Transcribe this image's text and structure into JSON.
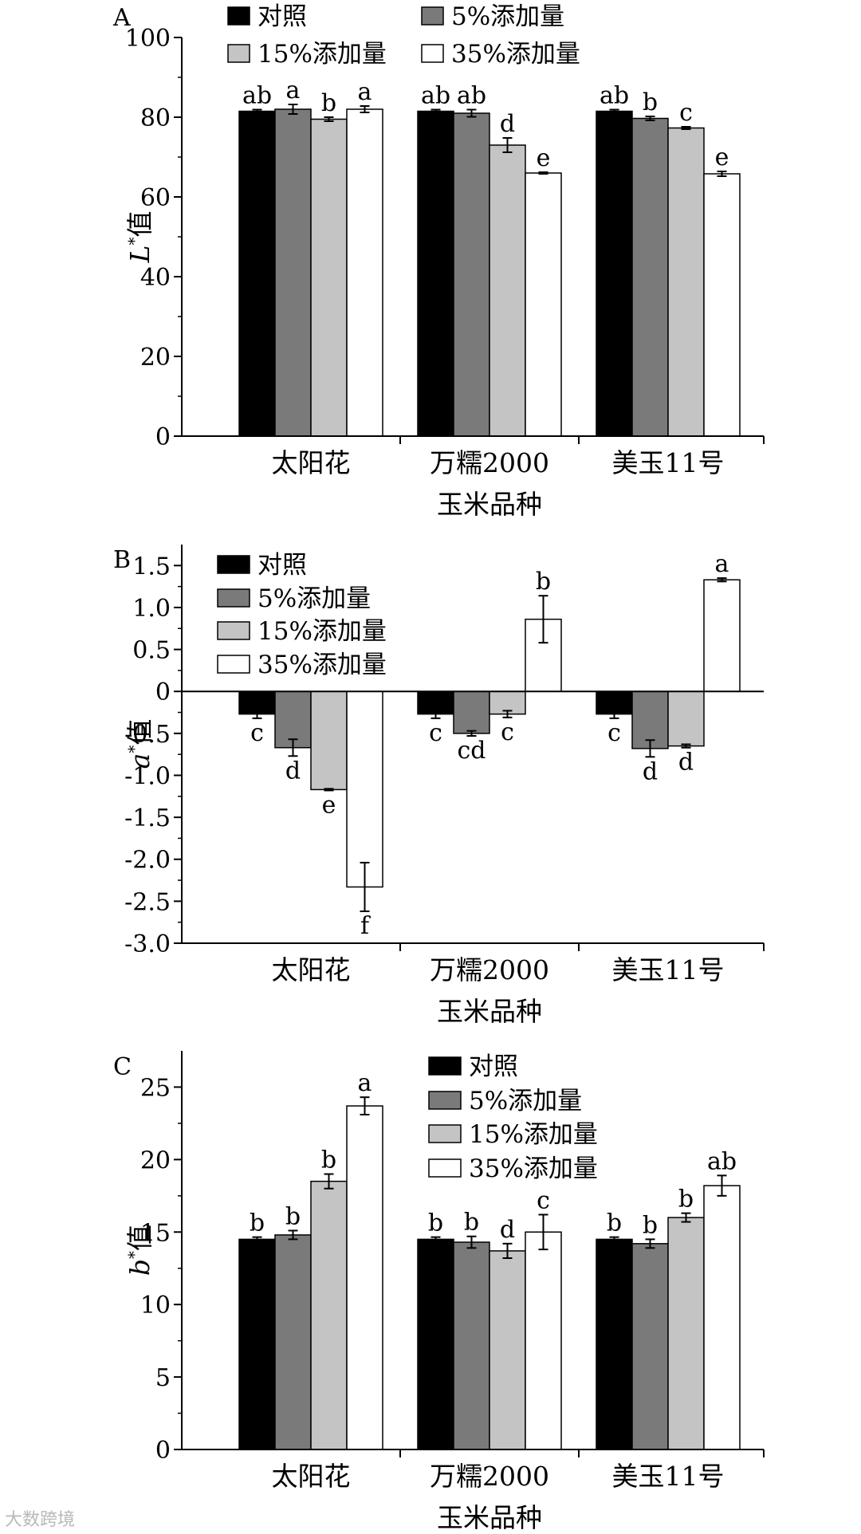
{
  "watermark": "大数跨境",
  "colors": {
    "对照": "#000000",
    "5%添加量": "#7a7a7a",
    "15%添加量": "#c4c4c4",
    "35%添加量": "#ffffff"
  },
  "chart_data": [
    {
      "type": "bar",
      "panel_label": "A",
      "xlabel": "玉米品种",
      "ylabel_main": "L",
      "ylabel_suffix": "值",
      "categories": [
        "太阳花",
        "万糯2000",
        "美玉11号"
      ],
      "ylim": [
        0,
        100
      ],
      "yticks": [
        "0",
        "20",
        "40",
        "60",
        "80",
        "100"
      ],
      "legend_position": "top",
      "series": [
        {
          "name": "对照",
          "values": [
            81.5,
            81.5,
            81.5
          ],
          "errors": [
            0.4,
            0.4,
            0.4
          ],
          "letters": [
            "ab",
            "ab",
            "ab"
          ]
        },
        {
          "name": "5%添加量",
          "values": [
            82.0,
            81.0,
            79.7
          ],
          "errors": [
            1.2,
            0.9,
            0.5
          ],
          "letters": [
            "a",
            "ab",
            "b"
          ]
        },
        {
          "name": "15%添加量",
          "values": [
            79.5,
            73.0,
            77.3
          ],
          "errors": [
            0.5,
            1.8,
            0.3
          ],
          "letters": [
            "b",
            "d",
            "c"
          ]
        },
        {
          "name": "35%添加量",
          "values": [
            82.0,
            66.0,
            65.8
          ],
          "errors": [
            0.8,
            0.2,
            0.6
          ],
          "letters": [
            "a",
            "e",
            "e"
          ]
        }
      ]
    },
    {
      "type": "bar",
      "panel_label": "B",
      "xlabel": "玉米品种",
      "ylabel_main": "a",
      "ylabel_suffix": "值",
      "categories": [
        "太阳花",
        "万糯2000",
        "美玉11号"
      ],
      "ylim": [
        -3.0,
        1.75
      ],
      "yticks": [
        "-3.0",
        "-2.5",
        "-2.0",
        "-1.5",
        "-1.0",
        "-0.5",
        "0",
        "0.5",
        "1.0",
        "1.5"
      ],
      "legend_position": "top-left",
      "series": [
        {
          "name": "对照",
          "values": [
            -0.27,
            -0.27,
            -0.27
          ],
          "errors": [
            0.05,
            0.05,
            0.05
          ],
          "letters": [
            "c",
            "c",
            "c"
          ]
        },
        {
          "name": "5%添加量",
          "values": [
            -0.67,
            -0.5,
            -0.68
          ],
          "errors": [
            0.1,
            0.03,
            0.1
          ],
          "letters": [
            "d",
            "cd",
            "d"
          ]
        },
        {
          "name": "15%添加量",
          "values": [
            -1.17,
            -0.27,
            -0.65
          ],
          "errors": [
            0.01,
            0.04,
            0.02
          ],
          "letters": [
            "e",
            "c",
            "d"
          ]
        },
        {
          "name": "35%添加量",
          "values": [
            -2.33,
            0.86,
            1.33
          ],
          "errors": [
            0.29,
            0.28,
            0.02
          ],
          "letters": [
            "f",
            "b",
            "a"
          ]
        }
      ]
    },
    {
      "type": "bar",
      "panel_label": "C",
      "xlabel": "玉米品种",
      "ylabel_main": "b",
      "ylabel_suffix": "值",
      "categories": [
        "太阳花",
        "万糯2000",
        "美玉11号"
      ],
      "ylim": [
        0,
        27.5
      ],
      "yticks": [
        "0",
        "5",
        "10",
        "15",
        "20",
        "25"
      ],
      "legend_position": "top-right",
      "series": [
        {
          "name": "对照",
          "values": [
            14.5,
            14.5,
            14.5
          ],
          "errors": [
            0.15,
            0.15,
            0.15
          ],
          "letters": [
            "b",
            "b",
            "b"
          ]
        },
        {
          "name": "5%添加量",
          "values": [
            14.8,
            14.3,
            14.2
          ],
          "errors": [
            0.3,
            0.4,
            0.3
          ],
          "letters": [
            "b",
            "b",
            "b"
          ]
        },
        {
          "name": "15%添加量",
          "values": [
            18.5,
            13.7,
            16.0
          ],
          "errors": [
            0.5,
            0.5,
            0.3
          ],
          "letters": [
            "b",
            "d",
            "b"
          ]
        },
        {
          "name": "35%添加量",
          "values": [
            23.7,
            15.0,
            18.2
          ],
          "errors": [
            0.6,
            1.2,
            0.7
          ],
          "letters": [
            "a",
            "c",
            "ab"
          ]
        }
      ]
    }
  ]
}
